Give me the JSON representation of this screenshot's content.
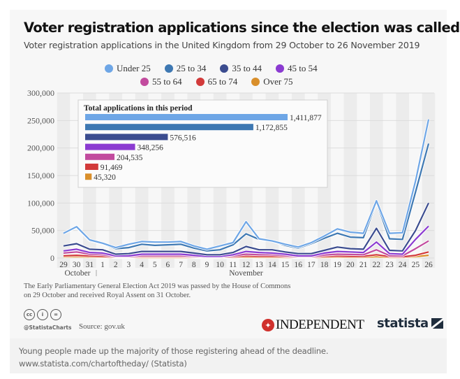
{
  "chart_data": {
    "type": "line",
    "title": "Voter registration applications since the election was called",
    "subtitle": "Voter registration applications in the United Kingdom from 29 October to 26 November 2019",
    "xlabel": "",
    "ylabel": "",
    "ylim": [
      0,
      300000
    ],
    "yticks": [
      0,
      50000,
      100000,
      150000,
      200000,
      250000,
      300000
    ],
    "ytick_labels": [
      "0",
      "50,000",
      "100,000",
      "150,000",
      "200,000",
      "250,000",
      "300,000"
    ],
    "x": [
      "29",
      "30",
      "31",
      "1",
      "2",
      "3",
      "4",
      "5",
      "6",
      "7",
      "8",
      "9",
      "10",
      "11",
      "12",
      "13",
      "14",
      "15",
      "16",
      "17",
      "18",
      "19",
      "20",
      "21",
      "22",
      "23",
      "24",
      "25",
      "26"
    ],
    "month_labels": [
      {
        "label": "October",
        "at": "29"
      },
      {
        "label": "November",
        "at": "12"
      }
    ],
    "grid": true,
    "legend_position": "top-center",
    "series": [
      {
        "name": "Under 25",
        "color": "#6ea6e6",
        "values": [
          45000,
          57000,
          33000,
          27000,
          19000,
          25000,
          30000,
          29000,
          29000,
          30000,
          22000,
          16000,
          22000,
          28000,
          66000,
          35000,
          31000,
          25000,
          20000,
          28000,
          40000,
          53000,
          47000,
          45000,
          104000,
          45000,
          46000,
          140000,
          252000
        ]
      },
      {
        "name": "25 to 34",
        "color": "#3e78b2",
        "values": [
          45000,
          56000,
          32000,
          26000,
          17000,
          19000,
          25000,
          23000,
          24000,
          25000,
          18000,
          13000,
          15000,
          24000,
          44000,
          34000,
          31000,
          23000,
          18000,
          26000,
          36000,
          45000,
          38000,
          37000,
          102000,
          35000,
          34000,
          120000,
          208000
        ]
      },
      {
        "name": "35 to 44",
        "color": "#3b4c8f",
        "values": [
          22000,
          26000,
          16000,
          15000,
          7000,
          8000,
          12000,
          12000,
          12000,
          12000,
          9000,
          6000,
          6000,
          10000,
          21000,
          15000,
          15000,
          11000,
          8000,
          8000,
          14000,
          20000,
          17000,
          16000,
          54000,
          14000,
          13000,
          50000,
          100000
        ]
      },
      {
        "name": "45 to 54",
        "color": "#8b3bd1",
        "values": [
          13000,
          16000,
          10000,
          9000,
          4000,
          4000,
          7000,
          7000,
          7000,
          7000,
          5000,
          3000,
          3000,
          6000,
          12000,
          10000,
          9000,
          7000,
          4000,
          4000,
          9000,
          12000,
          11000,
          10000,
          29000,
          8000,
          7000,
          34000,
          58000
        ]
      },
      {
        "name": "55 to 64",
        "color": "#c24b9e",
        "values": [
          9000,
          11000,
          7000,
          6000,
          2500,
          2500,
          4500,
          4500,
          4500,
          4500,
          3000,
          2000,
          2000,
          4000,
          7000,
          6000,
          6000,
          4500,
          2500,
          2500,
          5500,
          7000,
          6500,
          6000,
          15000,
          4500,
          4000,
          17000,
          31000
        ]
      },
      {
        "name": "65 to 74",
        "color": "#d23a3a",
        "values": [
          4000,
          5000,
          3500,
          3000,
          1500,
          1500,
          2500,
          2500,
          2500,
          2500,
          2000,
          1200,
          1200,
          2000,
          3500,
          3000,
          3000,
          2500,
          1500,
          1500,
          3000,
          3500,
          3000,
          3000,
          6000,
          2500,
          2000,
          5000,
          11000
        ]
      },
      {
        "name": "Over 75",
        "color": "#d98f2b",
        "values": [
          2000,
          2500,
          1800,
          1500,
          800,
          800,
          1200,
          1200,
          1200,
          1200,
          900,
          600,
          600,
          1000,
          1500,
          1300,
          1300,
          1100,
          700,
          700,
          1300,
          1500,
          1300,
          1300,
          2500,
          1000,
          900,
          2500,
          5000
        ]
      }
    ],
    "inset": {
      "type": "bar",
      "title": "Total applications in this period",
      "categories": [
        "Under 25",
        "25 to 34",
        "35 to 44",
        "45 to 54",
        "55 to 64",
        "65 to 74",
        "Over 75"
      ],
      "values": [
        1411877,
        1172855,
        576516,
        348256,
        204535,
        91469,
        45320
      ],
      "value_labels": [
        "1,411,877",
        "1,172,855",
        "576,516",
        "348,256",
        "204,535",
        "91,469",
        "45,320"
      ]
    }
  },
  "note": {
    "line1": "The Early Parliamentary General Election Act 2019 was passed by the House of Commons",
    "line2": "on 29 October and received Royal Assent on 31 October."
  },
  "footer": {
    "license_icons": [
      "cc",
      "by",
      "nd"
    ],
    "handle": "@StatistaCharts",
    "source": "Source: gov.uk",
    "publisher": "INDEPENDENT",
    "brand": "statista"
  },
  "caption": {
    "line1": "Young people made up the majority of those registering ahead of the deadline.",
    "line2": "www.statista.com/chartoftheday/ (Statista)"
  }
}
